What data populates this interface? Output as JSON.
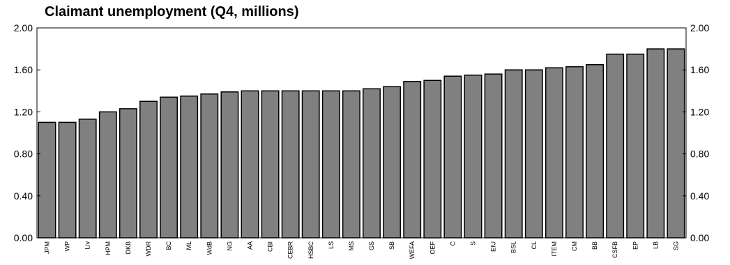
{
  "chart_data": {
    "type": "bar",
    "title": "Claimant unemployment (Q4, millions)",
    "xlabel": "",
    "ylabel": "",
    "ylim": [
      0,
      2
    ],
    "yticks": [
      "0.00",
      "0.40",
      "0.80",
      "1.20",
      "1.60",
      "2.00"
    ],
    "categories": [
      "JPM",
      "WP",
      "Liv",
      "HPM",
      "DKB",
      "WDR",
      "BC",
      "ML",
      "WdB",
      "NG",
      "AA",
      "CBI",
      "CEBR",
      "HSBC",
      "LS",
      "MS",
      "GS",
      "SB",
      "WEFA",
      "OEF",
      "C",
      "S",
      "EIU",
      "BSL",
      "CL",
      "ITEM",
      "CM",
      "BB",
      "CSFB",
      "EP",
      "LB",
      "SG"
    ],
    "values": [
      1.1,
      1.1,
      1.13,
      1.2,
      1.23,
      1.3,
      1.34,
      1.35,
      1.37,
      1.39,
      1.4,
      1.4,
      1.4,
      1.4,
      1.4,
      1.4,
      1.42,
      1.44,
      1.49,
      1.5,
      1.54,
      1.55,
      1.56,
      1.6,
      1.6,
      1.62,
      1.63,
      1.65,
      1.75,
      1.75,
      1.8,
      1.8
    ],
    "bar_color": "#808080",
    "bar_edge_color": "#000000",
    "grid": false,
    "right_axis": true
  }
}
